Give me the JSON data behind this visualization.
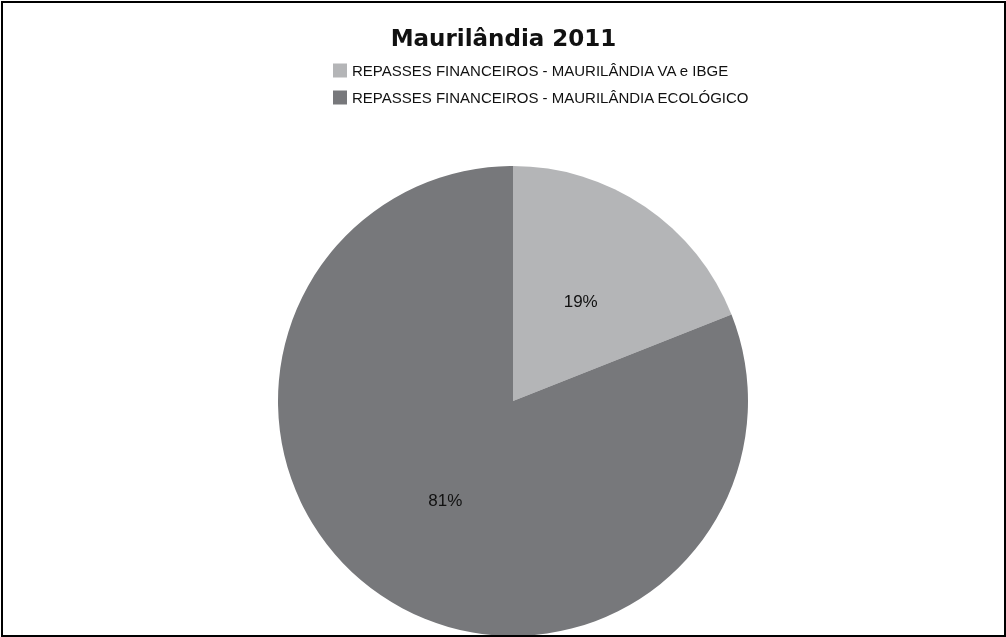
{
  "chart_data": {
    "type": "pie",
    "title": "Maurilândia 2011",
    "categories": [
      "REPASSES FINANCEIROS - MAURILÂNDIA VA e IBGE",
      "REPASSES FINANCEIROS - MAURILÂNDIA ECOLÓGICO"
    ],
    "values": [
      19,
      81
    ],
    "colors": [
      "#b4b5b7",
      "#77787b"
    ],
    "value_labels": [
      "19%",
      "81%"
    ],
    "legend": "top"
  }
}
